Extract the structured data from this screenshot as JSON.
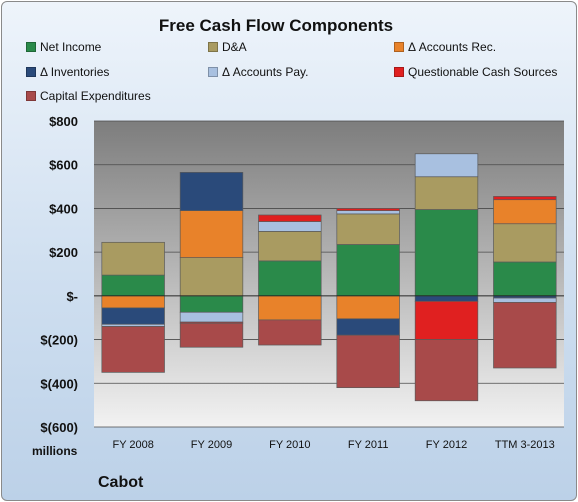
{
  "chart_data": {
    "type": "bar",
    "stacked": true,
    "title": "Free Cash Flow Components",
    "categories": [
      "FY 2008",
      "FY 2009",
      "FY 2010",
      "FY 2011",
      "FY 2012",
      "TTM 3-2013"
    ],
    "ylim": [
      -600,
      800
    ],
    "yticks": [
      {
        "value": 800,
        "label": "$800"
      },
      {
        "value": 600,
        "label": "$600"
      },
      {
        "value": 400,
        "label": "$400"
      },
      {
        "value": 200,
        "label": "$200"
      },
      {
        "value": 0,
        "label": "$-"
      },
      {
        "value": -200,
        "label": "$(200)"
      },
      {
        "value": -400,
        "label": "$(400)"
      },
      {
        "value": -600,
        "label": "$(600)"
      }
    ],
    "ylabel": "millions",
    "grid": true,
    "legend_position": "top",
    "series": [
      {
        "name": "Net Income",
        "color": "#2a8a4a",
        "values": [
          95,
          -75,
          160,
          235,
          395,
          155
        ]
      },
      {
        "name": "D&A",
        "color": "#a99b61",
        "values": [
          150,
          175,
          135,
          140,
          150,
          175
        ]
      },
      {
        "name": "Δ Accounts Rec.",
        "color": "#e8822a",
        "values": [
          -55,
          215,
          -110,
          -105,
          0,
          110
        ]
      },
      {
        "name": "Δ Inventories",
        "color": "#2a4a7a",
        "values": [
          -75,
          175,
          0,
          -75,
          -25,
          -10
        ]
      },
      {
        "name": "Δ Accounts Pay.",
        "color": "#a8c0e0",
        "values": [
          -10,
          -45,
          45,
          15,
          105,
          -20
        ]
      },
      {
        "name": "Questionable Cash Sources",
        "color": "#e02020",
        "values": [
          0,
          -5,
          30,
          10,
          -175,
          15
        ]
      },
      {
        "name": "Capital Expenditures",
        "color": "#a84a4a",
        "values": [
          -210,
          -110,
          -115,
          -240,
          -280,
          -300
        ]
      }
    ]
  },
  "footer": {
    "company": "Cabot"
  }
}
